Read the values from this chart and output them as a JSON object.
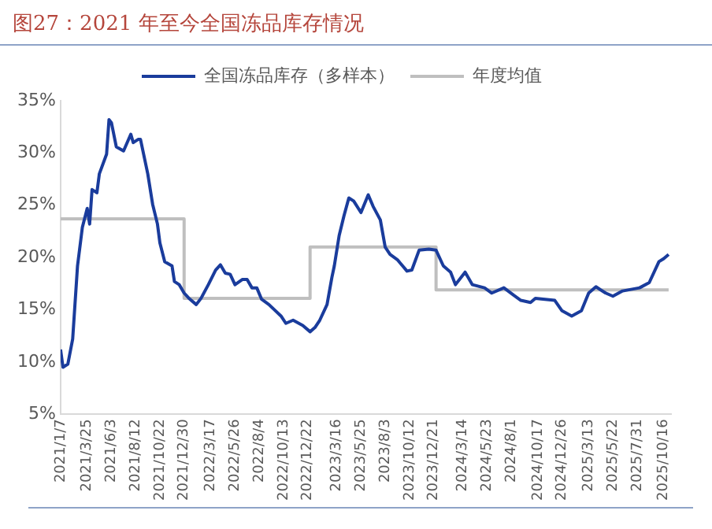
{
  "chart_data": {
    "type": "line",
    "title": "图27：2021 年至今全国冻品库存情况",
    "legend": "top",
    "grid": false,
    "marker": "none",
    "line_style": "solid",
    "xlim": [
      "2021-01-07",
      "2025-11-06"
    ],
    "xticks": [
      {
        "value": "2021-01-07",
        "label": "2021/1/7"
      },
      {
        "value": "2021-03-25",
        "label": "2021/3/25"
      },
      {
        "value": "2021-06-03",
        "label": "2021/6/3"
      },
      {
        "value": "2021-08-12",
        "label": "2021/8/12"
      },
      {
        "value": "2021-10-22",
        "label": "2021/10/22"
      },
      {
        "value": "2021-12-30",
        "label": "2021/12/30"
      },
      {
        "value": "2022-03-17",
        "label": "2022/3/17"
      },
      {
        "value": "2022-05-26",
        "label": "2022/5/26"
      },
      {
        "value": "2022-08-04",
        "label": "2022/8/4"
      },
      {
        "value": "2022-10-13",
        "label": "2022/10/13"
      },
      {
        "value": "2022-12-22",
        "label": "2022/12/22"
      },
      {
        "value": "2023-03-16",
        "label": "2023/3/16"
      },
      {
        "value": "2023-05-25",
        "label": "2023/5/25"
      },
      {
        "value": "2023-08-03",
        "label": "2023/8/3"
      },
      {
        "value": "2023-10-12",
        "label": "2023/10/12"
      },
      {
        "value": "2023-12-21",
        "label": "2023/12/21"
      },
      {
        "value": "2024-03-14",
        "label": "2024/3/14"
      },
      {
        "value": "2024-05-23",
        "label": "2024/5/23"
      },
      {
        "value": "2024-08-01",
        "label": "2024/8/1"
      },
      {
        "value": "2024-10-17",
        "label": "2024/10/17"
      },
      {
        "value": "2024-12-26",
        "label": "2024/12/26"
      },
      {
        "value": "2025-03-13",
        "label": "2025/3/13"
      },
      {
        "value": "2025-05-22",
        "label": "2025/5/22"
      },
      {
        "value": "2025-07-31",
        "label": "2025/7/31"
      },
      {
        "value": "2025-10-16",
        "label": "2025/10/16"
      }
    ],
    "ylim": [
      5,
      35
    ],
    "yticks": [
      {
        "value": 5,
        "label": "5%"
      },
      {
        "value": 10,
        "label": "10%"
      },
      {
        "value": 15,
        "label": "15%"
      },
      {
        "value": 20,
        "label": "20%"
      },
      {
        "value": 25,
        "label": "25%"
      },
      {
        "value": 30,
        "label": "30%"
      },
      {
        "value": 35,
        "label": "35%"
      }
    ],
    "series": [
      {
        "name": "全国冻品库存（多样本）",
        "type": "line",
        "color": "#1a3c9c",
        "x": [
          "2021-01-07",
          "2021-01-14",
          "2021-01-28",
          "2021-02-11",
          "2021-02-25",
          "2021-03-11",
          "2021-03-25",
          "2021-04-01",
          "2021-04-08",
          "2021-04-22",
          "2021-04-29",
          "2021-05-20",
          "2021-05-27",
          "2021-06-03",
          "2021-06-17",
          "2021-07-08",
          "2021-07-29",
          "2021-08-05",
          "2021-08-19",
          "2021-08-26",
          "2021-09-16",
          "2021-09-30",
          "2021-10-14",
          "2021-10-21",
          "2021-11-04",
          "2021-11-25",
          "2021-12-02",
          "2021-12-16",
          "2021-12-30",
          "2022-01-13",
          "2022-02-03",
          "2022-02-17",
          "2022-03-10",
          "2022-03-31",
          "2022-04-14",
          "2022-04-28",
          "2022-05-12",
          "2022-05-26",
          "2022-06-16",
          "2022-06-30",
          "2022-07-14",
          "2022-07-28",
          "2022-08-11",
          "2022-09-01",
          "2022-10-06",
          "2022-10-20",
          "2022-11-10",
          "2022-12-08",
          "2022-12-29",
          "2023-01-12",
          "2023-01-26",
          "2023-02-16",
          "2023-03-02",
          "2023-03-09",
          "2023-03-23",
          "2023-04-06",
          "2023-04-20",
          "2023-05-04",
          "2023-05-25",
          "2023-06-15",
          "2023-06-29",
          "2023-07-20",
          "2023-08-03",
          "2023-08-17",
          "2023-09-07",
          "2023-10-05",
          "2023-10-19",
          "2023-11-09",
          "2023-12-07",
          "2023-12-28",
          "2024-01-18",
          "2024-02-08",
          "2024-02-22",
          "2024-03-21",
          "2024-04-11",
          "2024-05-16",
          "2024-06-06",
          "2024-07-11",
          "2024-08-08",
          "2024-08-29",
          "2024-09-26",
          "2024-10-10",
          "2024-12-05",
          "2024-12-26",
          "2025-01-23",
          "2025-02-20",
          "2025-03-13",
          "2025-04-03",
          "2025-05-01",
          "2025-05-22",
          "2025-06-19",
          "2025-08-07",
          "2025-09-04",
          "2025-10-02",
          "2025-10-16",
          "2025-10-30"
        ],
        "values": [
          11.2,
          9.5,
          9.8,
          12.2,
          19.2,
          22.9,
          24.7,
          23.2,
          26.5,
          26.2,
          28.0,
          29.9,
          33.2,
          32.9,
          30.6,
          30.2,
          31.8,
          31.0,
          31.3,
          31.3,
          28.0,
          25.1,
          23.2,
          21.4,
          19.6,
          19.2,
          17.7,
          17.4,
          16.6,
          16.1,
          15.5,
          16.1,
          17.4,
          18.8,
          19.3,
          18.5,
          18.4,
          17.4,
          17.9,
          17.9,
          17.1,
          17.1,
          16.0,
          15.5,
          14.4,
          13.7,
          14.0,
          13.5,
          12.9,
          13.3,
          14.0,
          15.5,
          18.1,
          19.2,
          22.1,
          24.0,
          25.7,
          25.4,
          24.3,
          26.0,
          24.9,
          23.6,
          21.0,
          20.3,
          19.8,
          18.7,
          18.8,
          20.7,
          20.8,
          20.7,
          19.2,
          18.6,
          17.4,
          18.6,
          17.4,
          17.1,
          16.6,
          17.1,
          16.4,
          15.9,
          15.7,
          16.1,
          15.9,
          14.9,
          14.4,
          14.9,
          16.6,
          17.2,
          16.6,
          16.3,
          16.8,
          17.1,
          17.6,
          19.6,
          19.9,
          20.3
        ]
      },
      {
        "name": "年度均值",
        "type": "step",
        "color": "#bfbfbf",
        "x": [
          "2021-01-07",
          "2021-12-30",
          "2022-12-29",
          "2023-12-28",
          "2025-10-30"
        ],
        "values": [
          23.7,
          16.1,
          21.0,
          16.9,
          16.9
        ]
      }
    ]
  }
}
